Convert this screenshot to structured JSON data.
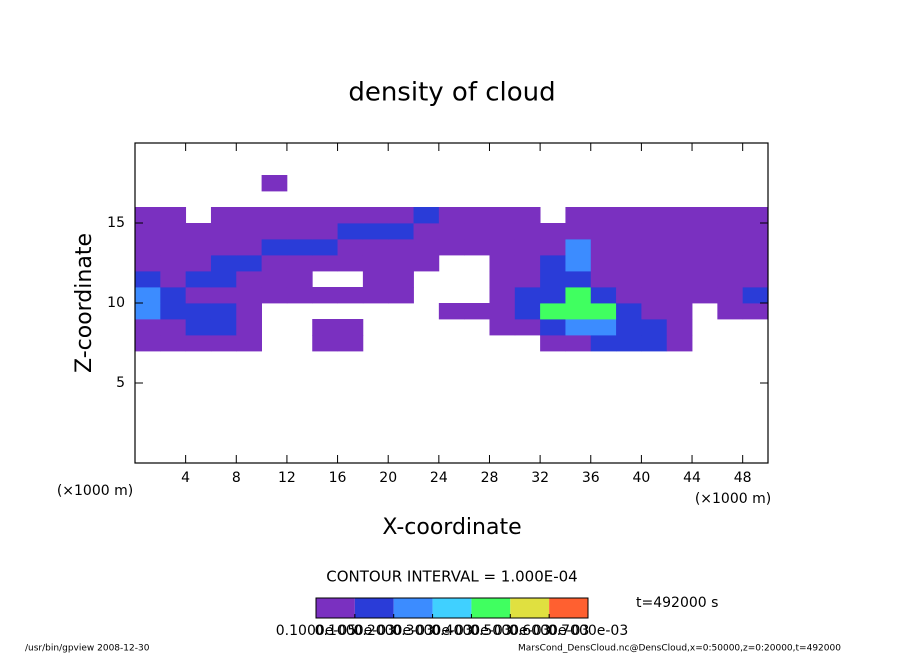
{
  "chart_data": {
    "type": "contour",
    "title": "density of cloud",
    "x_label": "X-coordinate",
    "y_label": "Z-coordinate",
    "x_unit": "(×1000 m)",
    "y_unit": "(×1000 m)",
    "contour_interval": "CONTOUR INTERVAL = 1.000E-04",
    "time_label": "t=492000 s",
    "footer_left": "/usr/bin/gpview   2008-12-30",
    "footer_right": "MarsCond_DensCloud.nc@DensCloud,x=0:50000,z=0:20000,t=492000",
    "xlim": [
      0,
      50
    ],
    "ylim": [
      0,
      20
    ],
    "xticks": [
      4,
      8,
      12,
      16,
      20,
      24,
      28,
      32,
      36,
      40,
      44,
      48
    ],
    "yticks": [
      5,
      10,
      15
    ],
    "colorbar": {
      "levels": [
        1e-06,
        0.0001,
        0.0002,
        0.0003,
        0.0004,
        0.0005,
        0.0006,
        0.0007
      ],
      "labels": [
        "0.1000e-05",
        "0.1000e-03",
        "0.2000e-03",
        "0.3000e-03",
        "0.4000e-03",
        "0.5000e-03",
        "0.6000e-03",
        "0.7000e-03"
      ],
      "colors": [
        "#7a30c0",
        "#2a3cd8",
        "#3c8cff",
        "#40d0ff",
        "#40ff60",
        "#e0e040",
        "#ff6030"
      ]
    },
    "x": [
      1,
      3,
      5,
      7,
      9,
      11,
      13,
      15,
      17,
      19,
      21,
      23,
      25,
      27,
      29,
      31,
      33,
      35,
      37,
      39,
      41,
      43,
      45,
      47,
      49
    ],
    "z": [
      7.5,
      8.5,
      9.5,
      10.5,
      11.5,
      12.5,
      13.5,
      14.5,
      15.5,
      16.5,
      17.5
    ],
    "values": [
      [
        5e-05,
        5e-05,
        5e-05,
        5e-05,
        5e-05,
        0,
        0,
        5e-05,
        5e-05,
        0,
        0,
        0,
        0,
        0,
        0,
        0,
        5e-05,
        5e-05,
        0.00015,
        0.00015,
        0.00015,
        5e-05,
        0,
        0,
        0
      ],
      [
        5e-05,
        5e-05,
        0.00015,
        0.00015,
        5e-05,
        0,
        0,
        5e-05,
        5e-05,
        0,
        0,
        0,
        0,
        0,
        5e-05,
        5e-05,
        0.00015,
        0.00025,
        0.00025,
        0.00015,
        0.00015,
        5e-05,
        0,
        0,
        0
      ],
      [
        0.00025,
        0.00015,
        0.00015,
        0.00015,
        5e-05,
        0,
        0,
        0,
        0,
        0,
        0,
        0,
        5e-05,
        5e-05,
        5e-05,
        0.00015,
        0.00045,
        0.00045,
        0.00045,
        0.00015,
        5e-05,
        5e-05,
        0,
        5e-05,
        5e-05
      ],
      [
        0.00025,
        0.00015,
        5e-05,
        5e-05,
        5e-05,
        5e-05,
        5e-05,
        5e-05,
        5e-05,
        5e-05,
        5e-05,
        0,
        0,
        0,
        5e-05,
        0.00015,
        0.00015,
        0.00045,
        0.00015,
        5e-05,
        5e-05,
        5e-05,
        5e-05,
        5e-05,
        0.00015
      ],
      [
        0.00015,
        5e-05,
        0.00015,
        0.00015,
        5e-05,
        5e-05,
        5e-05,
        0,
        0,
        5e-05,
        5e-05,
        0,
        0,
        0,
        5e-05,
        5e-05,
        0.00015,
        0.00015,
        5e-05,
        5e-05,
        5e-05,
        5e-05,
        5e-05,
        5e-05,
        5e-05
      ],
      [
        5e-05,
        5e-05,
        5e-05,
        0.00015,
        0.00015,
        5e-05,
        5e-05,
        5e-05,
        5e-05,
        5e-05,
        5e-05,
        5e-05,
        0,
        0,
        5e-05,
        5e-05,
        0.00015,
        0.00025,
        5e-05,
        5e-05,
        5e-05,
        5e-05,
        5e-05,
        5e-05,
        5e-05
      ],
      [
        5e-05,
        5e-05,
        5e-05,
        5e-05,
        5e-05,
        0.00015,
        0.00015,
        0.00015,
        5e-05,
        5e-05,
        5e-05,
        5e-05,
        5e-05,
        5e-05,
        5e-05,
        5e-05,
        5e-05,
        0.00025,
        5e-05,
        5e-05,
        5e-05,
        5e-05,
        5e-05,
        5e-05,
        5e-05
      ],
      [
        5e-05,
        5e-05,
        5e-05,
        5e-05,
        5e-05,
        5e-05,
        5e-05,
        5e-05,
        0.00015,
        0.00015,
        0.00015,
        5e-05,
        5e-05,
        5e-05,
        5e-05,
        5e-05,
        5e-05,
        5e-05,
        5e-05,
        5e-05,
        5e-05,
        5e-05,
        5e-05,
        5e-05,
        5e-05
      ],
      [
        5e-05,
        5e-05,
        0,
        5e-05,
        5e-05,
        5e-05,
        5e-05,
        5e-05,
        5e-05,
        5e-05,
        5e-05,
        0.00015,
        5e-05,
        5e-05,
        5e-05,
        5e-05,
        0,
        5e-05,
        5e-05,
        5e-05,
        5e-05,
        5e-05,
        5e-05,
        5e-05,
        5e-05
      ],
      [
        0,
        0,
        0,
        0,
        0,
        0,
        0,
        0,
        0,
        0,
        0,
        0,
        0,
        0,
        0,
        0,
        0,
        0,
        0,
        0,
        0,
        0,
        0,
        0,
        0
      ],
      [
        0,
        0,
        0,
        0,
        0,
        5e-05,
        0,
        0,
        0,
        0,
        0,
        0,
        0,
        0,
        0,
        0,
        0,
        0,
        0,
        0,
        0,
        0,
        0,
        0,
        0
      ]
    ]
  }
}
